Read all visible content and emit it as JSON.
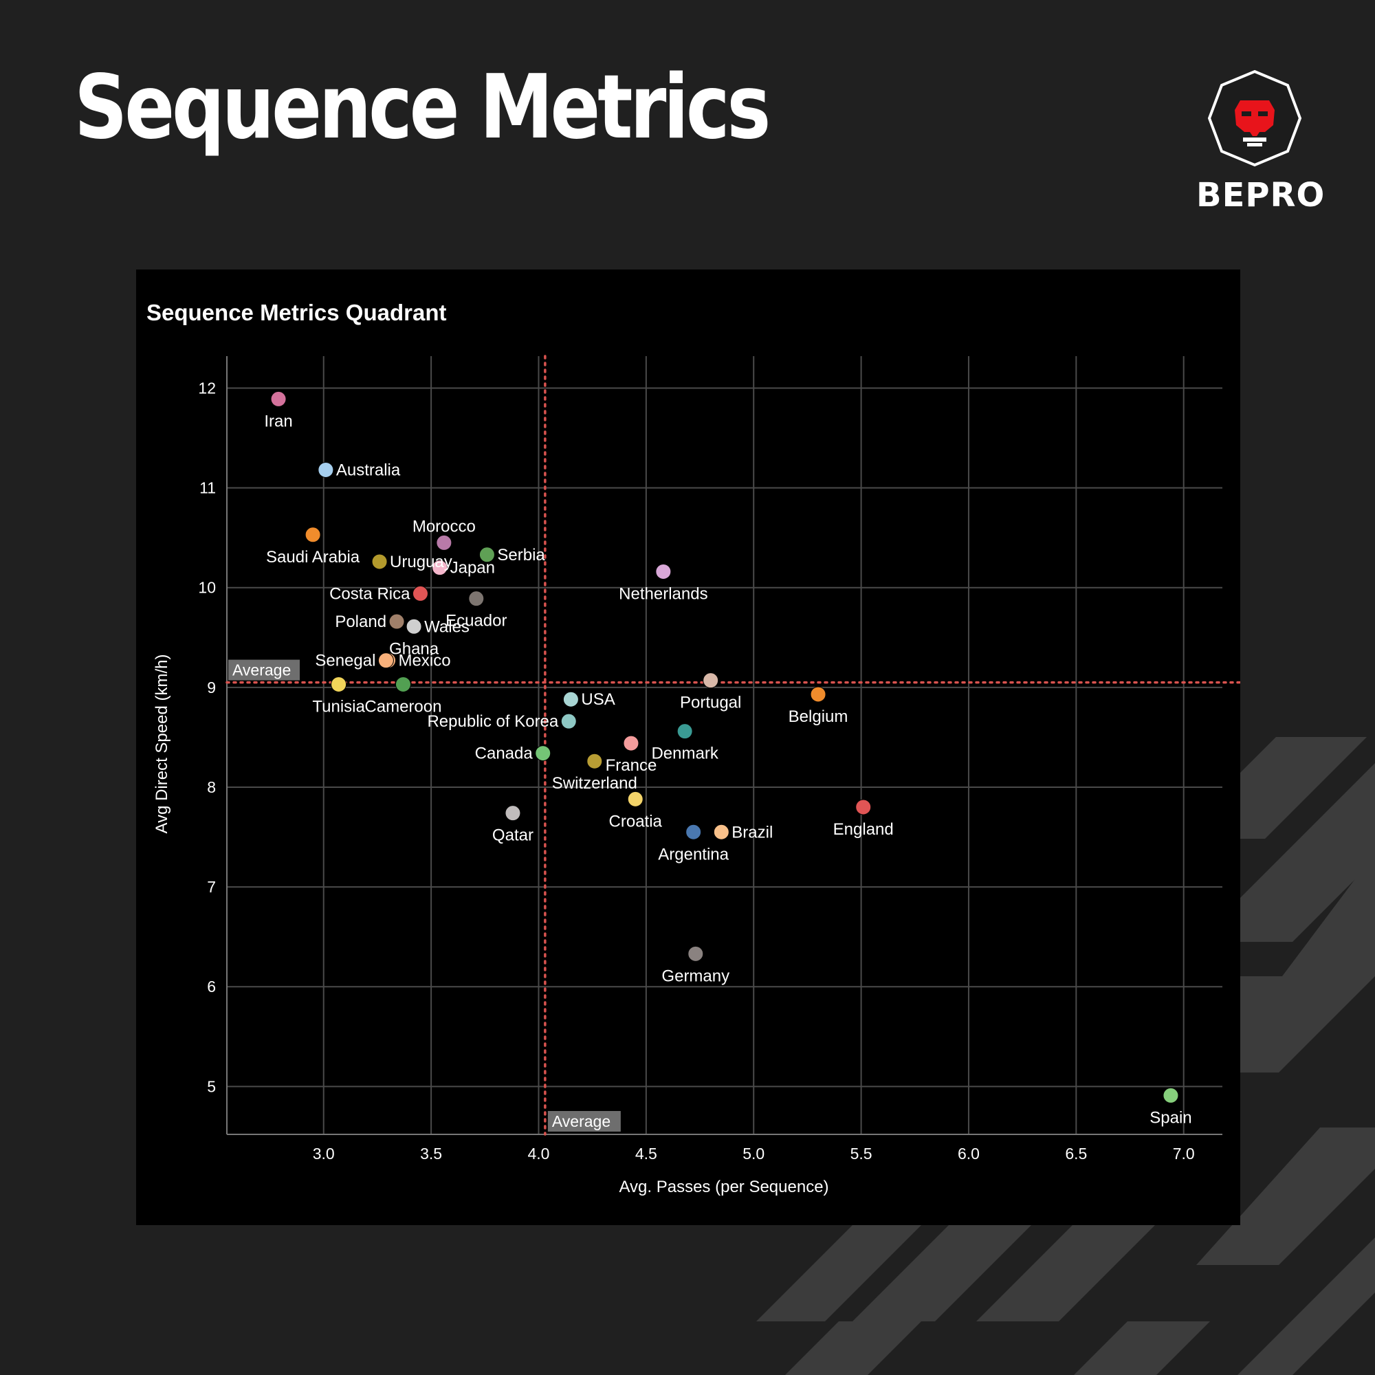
{
  "header": {
    "title": "Sequence Metrics",
    "brand": "BEPRO"
  },
  "colors": {
    "page_background": "#202020",
    "panel_background": "#000000",
    "stripe": "#3c3c3c",
    "grid": "#4a4a4a",
    "average_line": "#d9534f",
    "average_label_bg": "#6e6e6e",
    "logo_red": "#e8141b"
  },
  "chart_data": {
    "type": "scatter",
    "title": "Sequence Metrics Quadrant",
    "xlabel": "Avg. Passes (per Sequence)",
    "ylabel": "Avg Direct Speed (km/h)",
    "xlim": [
      2.55,
      7.18
    ],
    "ylim": [
      4.52,
      12.32
    ],
    "xticks": [
      3.0,
      3.5,
      4.0,
      4.5,
      5.0,
      5.5,
      6.0,
      6.5,
      7.0
    ],
    "xtick_labels": [
      "3.0",
      "3.5",
      "4.0",
      "4.5",
      "5.0",
      "5.5",
      "6.0",
      "6.5",
      "7.0"
    ],
    "yticks": [
      5,
      6,
      7,
      8,
      9,
      10,
      11,
      12
    ],
    "ytick_labels": [
      "5",
      "6",
      "7",
      "8",
      "9",
      "10",
      "11",
      "12"
    ],
    "grid": true,
    "legend": "none",
    "average_x": 4.03,
    "average_y": 9.05,
    "average_label": "Average",
    "points": [
      {
        "name": "Iran",
        "x": 2.79,
        "y": 11.89,
        "color": "#d4729c",
        "label_pos": "below"
      },
      {
        "name": "Australia",
        "x": 3.01,
        "y": 11.18,
        "color": "#a6cfee",
        "label_pos": "right"
      },
      {
        "name": "Saudi Arabia",
        "x": 2.95,
        "y": 10.53,
        "color": "#f08c2c",
        "label_pos": "below"
      },
      {
        "name": "Uruguay",
        "x": 3.26,
        "y": 10.26,
        "color": "#b39a2c",
        "label_pos": "right"
      },
      {
        "name": "Morocco",
        "x": 3.56,
        "y": 10.45,
        "color": "#b87aa8",
        "label_pos": "above"
      },
      {
        "name": "Serbia",
        "x": 3.76,
        "y": 10.33,
        "color": "#5fa055",
        "label_pos": "right"
      },
      {
        "name": "Japan",
        "x": 3.54,
        "y": 10.2,
        "color": "#f5b7cc",
        "label_pos": "right"
      },
      {
        "name": "Costa Rica",
        "x": 3.45,
        "y": 9.94,
        "color": "#e05555",
        "label_pos": "left"
      },
      {
        "name": "Ecuador",
        "x": 3.71,
        "y": 9.89,
        "color": "#7d7570",
        "label_pos": "below"
      },
      {
        "name": "Poland",
        "x": 3.34,
        "y": 9.66,
        "color": "#a0806a",
        "label_pos": "left"
      },
      {
        "name": "Wales",
        "x": 3.42,
        "y": 9.61,
        "color": "#c0bcbc",
        "label_pos": "right"
      },
      {
        "name": "Ghana",
        "x": 3.42,
        "y": 9.61,
        "color": "#cfcfcf",
        "label_pos": "below"
      },
      {
        "name": "Mexico",
        "x": 3.3,
        "y": 9.27,
        "color": "#f8b07a",
        "label_pos": "right"
      },
      {
        "name": "Senegal",
        "x": 3.29,
        "y": 9.27,
        "color": "#f8b07a",
        "label_pos": "left"
      },
      {
        "name": "Tunisia",
        "x": 3.07,
        "y": 9.03,
        "color": "#f1d45a",
        "label_pos": "below"
      },
      {
        "name": "Cameroon",
        "x": 3.37,
        "y": 9.03,
        "color": "#52a052",
        "label_pos": "below"
      },
      {
        "name": "USA",
        "x": 4.15,
        "y": 8.88,
        "color": "#a8d5d3",
        "label_pos": "right"
      },
      {
        "name": "Republic of Korea",
        "x": 4.14,
        "y": 8.66,
        "color": "#8ec8c4",
        "label_pos": "left"
      },
      {
        "name": "Canada",
        "x": 4.02,
        "y": 8.34,
        "color": "#74c476",
        "label_pos": "left"
      },
      {
        "name": "Switzerland",
        "x": 4.26,
        "y": 8.26,
        "color": "#b89d34",
        "label_pos": "below"
      },
      {
        "name": "France",
        "x": 4.43,
        "y": 8.44,
        "color": "#f49c9c",
        "label_pos": "below"
      },
      {
        "name": "Denmark",
        "x": 4.68,
        "y": 8.56,
        "color": "#3a9b94",
        "label_pos": "below"
      },
      {
        "name": "Portugal",
        "x": 4.8,
        "y": 9.07,
        "color": "#d8b8a8",
        "label_pos": "below"
      },
      {
        "name": "Belgium",
        "x": 5.3,
        "y": 8.93,
        "color": "#f08c2c",
        "label_pos": "below"
      },
      {
        "name": "Netherlands",
        "x": 4.58,
        "y": 10.16,
        "color": "#d9a8d8",
        "label_pos": "below"
      },
      {
        "name": "Qatar",
        "x": 3.88,
        "y": 7.74,
        "color": "#c0bcbc",
        "label_pos": "below"
      },
      {
        "name": "Croatia",
        "x": 4.45,
        "y": 7.88,
        "color": "#f4d46a",
        "label_pos": "below"
      },
      {
        "name": "Argentina",
        "x": 4.72,
        "y": 7.55,
        "color": "#4a78b0",
        "label_pos": "below"
      },
      {
        "name": "Brazil",
        "x": 4.85,
        "y": 7.55,
        "color": "#f8c08a",
        "label_pos": "right"
      },
      {
        "name": "England",
        "x": 5.51,
        "y": 7.8,
        "color": "#e05555",
        "label_pos": "below"
      },
      {
        "name": "Germany",
        "x": 4.73,
        "y": 6.33,
        "color": "#8a8280",
        "label_pos": "below"
      },
      {
        "name": "Spain",
        "x": 6.94,
        "y": 4.91,
        "color": "#86cf7c",
        "label_pos": "below"
      }
    ]
  }
}
